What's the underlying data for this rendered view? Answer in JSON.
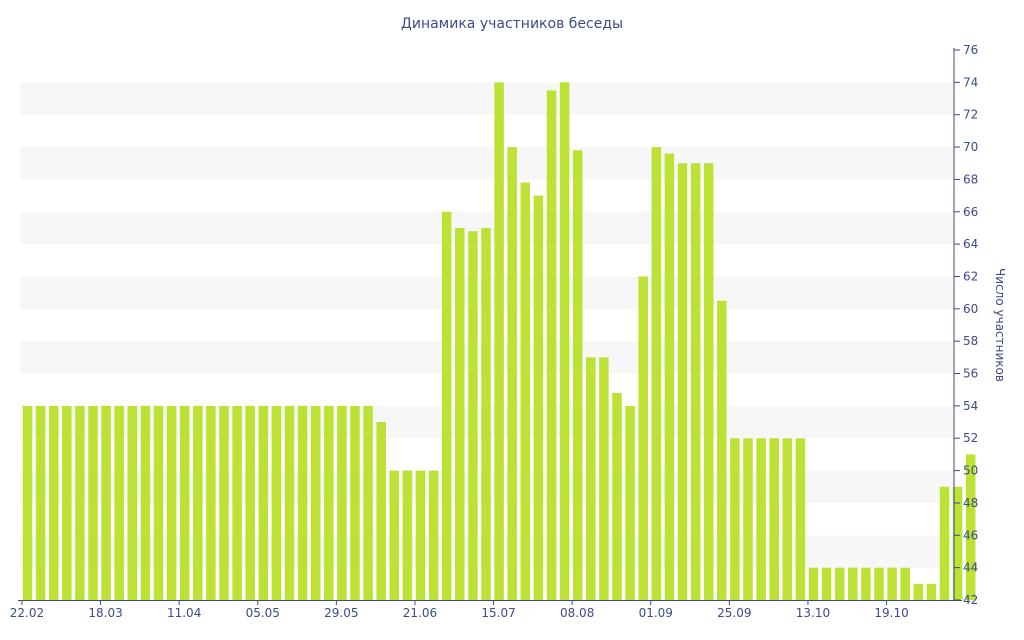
{
  "chart_data": {
    "type": "bar",
    "title": "Динамика участников беседы",
    "xlabel": "",
    "ylabel": "Число участников",
    "ylim": [
      42,
      76
    ],
    "y_ticks": [
      42,
      44,
      46,
      48,
      50,
      52,
      54,
      56,
      58,
      60,
      62,
      64,
      66,
      68,
      70,
      72,
      74,
      76
    ],
    "y_axis_side": "right",
    "x_tick_labels": [
      {
        "label": "22.02",
        "index": 0
      },
      {
        "label": "18.03",
        "index": 6
      },
      {
        "label": "11.04",
        "index": 12
      },
      {
        "label": "05.05",
        "index": 18
      },
      {
        "label": "29.05",
        "index": 24
      },
      {
        "label": "21.06",
        "index": 30
      },
      {
        "label": "15.07",
        "index": 36
      },
      {
        "label": "08.08",
        "index": 42
      },
      {
        "label": "01.09",
        "index": 48
      },
      {
        "label": "25.09",
        "index": 54
      },
      {
        "label": "13.10",
        "index": 60
      },
      {
        "label": "19.10",
        "index": 66
      }
    ],
    "values": [
      54,
      54,
      54,
      54,
      54,
      54,
      54,
      54,
      54,
      54,
      54,
      54,
      54,
      54,
      54,
      54,
      54,
      54,
      54,
      54,
      54,
      54,
      54,
      54,
      54,
      54,
      54,
      53,
      50,
      50,
      50,
      50,
      66,
      65,
      64.8,
      65,
      74,
      70,
      67.8,
      67,
      73.5,
      74,
      69.8,
      57,
      57,
      54.8,
      54,
      62,
      70,
      69.6,
      69,
      69,
      69,
      60.5,
      52,
      52,
      52,
      52,
      52,
      52,
      44,
      44,
      44,
      44,
      44,
      44,
      44,
      44,
      43,
      43,
      49,
      49,
      51
    ],
    "grid": "alternating horizontal bands",
    "bar_color": "#bde236",
    "band_color": "#f7f7f7",
    "text_color": "#3d4a8a"
  }
}
